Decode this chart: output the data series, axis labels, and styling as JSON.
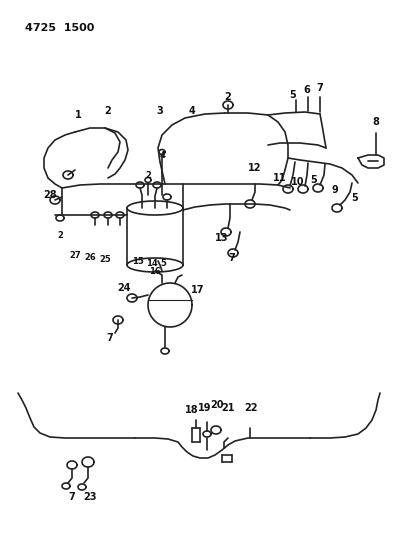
{
  "title": "4725  1500",
  "bg_color": "#ffffff",
  "line_color": "#222222",
  "text_color": "#111111",
  "figsize": [
    4.08,
    5.33
  ],
  "dpi": 100
}
